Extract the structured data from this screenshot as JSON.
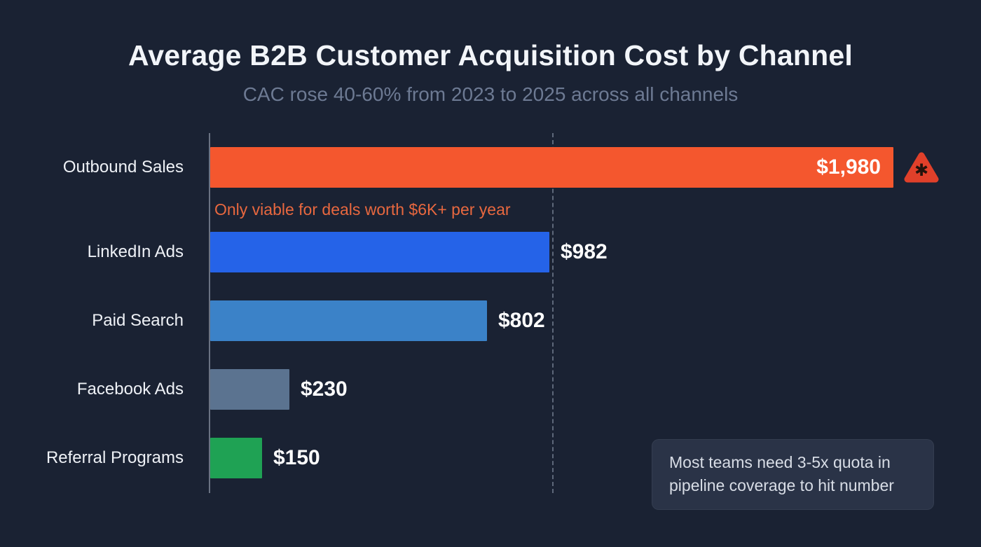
{
  "chart_data": {
    "type": "bar",
    "orientation": "horizontal",
    "title": "Average B2B Customer Acquisition Cost by Channel",
    "subtitle": "CAC rose 40-60% from 2023 to 2025 across all channels",
    "categories": [
      "Outbound Sales",
      "LinkedIn Ads",
      "Paid Search",
      "Facebook Ads",
      "Referral Programs"
    ],
    "values": [
      1980,
      982,
      802,
      230,
      150
    ],
    "value_labels": [
      "$1,980",
      "$982",
      "$802",
      "$230",
      "$150"
    ],
    "bar_colors": [
      "#f4572e",
      "#2563e8",
      "#3b82c8",
      "#5b7390",
      "#1fa254"
    ],
    "xlim": [
      0,
      2050
    ],
    "grid": "off",
    "reference_line": {
      "style": "dashed",
      "approx_value": 1000
    },
    "annotations": {
      "outbound_note": "Only viable for deals worth $6K+ per year",
      "warning_icon": "warning-triangle-asterisk",
      "warning_glyph": "✱"
    },
    "note_box": "Most teams need 3-5x quota in pipeline coverage to hit number",
    "colors": {
      "background": "#1a2233",
      "title_text": "#f2f5f9",
      "subtitle_text": "#6d7a93",
      "value_text": "#ffffff",
      "annotation_text": "#e8683f",
      "note_bg": "#2a3347",
      "note_text": "#d8dde6",
      "warning_icon_fill": "#e0402a"
    }
  }
}
